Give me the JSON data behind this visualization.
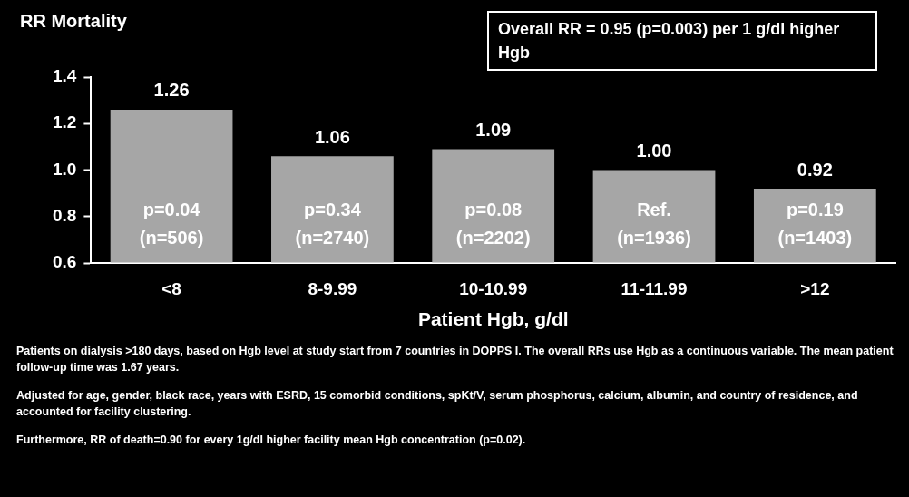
{
  "chart_data": {
    "type": "bar",
    "title": "RR Mortality",
    "xlabel": "Patient Hgb, g/dl",
    "categories": [
      "<8",
      "8-9.99",
      "10-10.99",
      "11-11.99",
      ">12"
    ],
    "values": [
      1.26,
      1.06,
      1.09,
      1.0,
      0.92
    ],
    "value_labels": [
      "1.26",
      "1.06",
      "1.09",
      "1.00",
      "0.92"
    ],
    "color": "#a6a6a6",
    "ylim": [
      0.6,
      1.4
    ],
    "yticks": [
      {
        "value": 0.6,
        "label": "0.6"
      },
      {
        "value": 0.8,
        "label": "0.8"
      },
      {
        "value": 1.0,
        "label": "1.0"
      },
      {
        "value": 1.2,
        "label": "1.2"
      },
      {
        "value": 1.4,
        "label": "1.4"
      }
    ],
    "legend": false,
    "annotations": [
      "Overall RR = 0.95 (p=0.003) per 1 g/dl higher Hgb",
      "p=0.04",
      "(n=506)",
      "p=0.34",
      "(n=2740)",
      "p=0.08",
      "(n=2202)",
      "Ref.",
      "(n=1936)",
      "p=0.19",
      "(n=1403)",
      "Patients on dialysis >180 days, based on Hgb level at study start from 7 countries in DOPPS I. The overall RRs use Hgb as a continuous variable. The mean patient follow-up time was 1.67 years.",
      "Adjusted for age, gender, black race, years with ESRD, 15 comorbid conditions, spKt/V, serum phosphorus, calcium, albumin, and country of residence, and accounted for facility clustering.",
      "Furthermore, RR of death=0.90 for every 1g/dl higher facility mean Hgb concentration (p=0.02)."
    ]
  }
}
